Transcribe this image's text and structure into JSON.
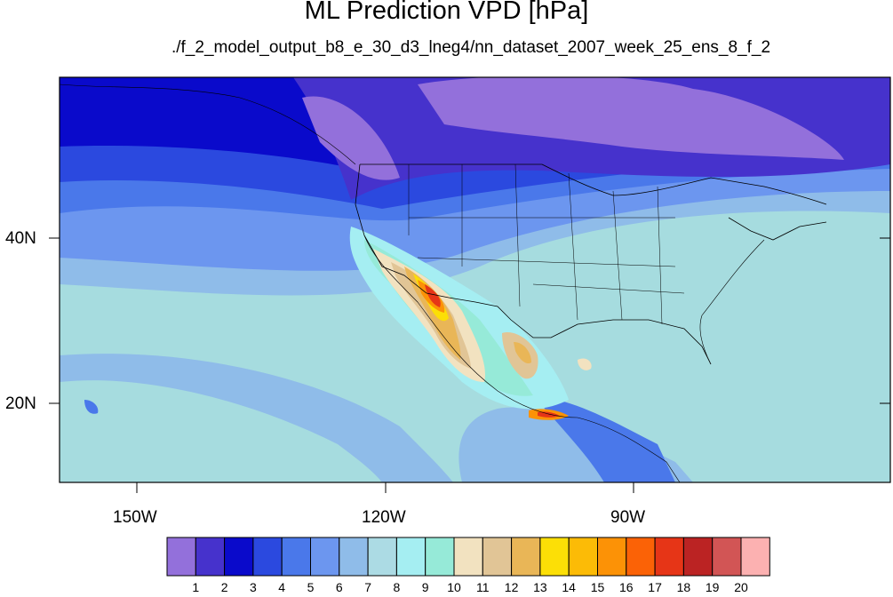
{
  "header": {
    "title": "ML Prediction VPD [hPa]",
    "subtitle": "./f_2_model_output_b8_e_30_d3_lneg4/nn_dataset_2007_week_25_ens_8_f_2"
  },
  "map": {
    "lat_labels": [
      "40N",
      "20N"
    ],
    "lon_labels": [
      "150W",
      "120W",
      "90W"
    ]
  },
  "colorbar": {
    "labels": [
      "1",
      "2",
      "3",
      "4",
      "5",
      "6",
      "7",
      "8",
      "9",
      "10",
      "11",
      "12",
      "13",
      "14",
      "15",
      "16",
      "17",
      "18",
      "19",
      "20"
    ],
    "colors": [
      "#9370db",
      "#4632cc",
      "#0a0acb",
      "#2b49df",
      "#4a78ea",
      "#6c96ef",
      "#8fbce9",
      "#acdbe4",
      "#a5eef2",
      "#96ead8",
      "#f2e2c0",
      "#e1c596",
      "#e9b657",
      "#fcdf06",
      "#fcbb06",
      "#fc9206",
      "#fb6206",
      "#e63517",
      "#bb2323",
      "#d25555",
      "#fcb1b1"
    ]
  },
  "colors": {
    "ocean_base": "#a6dcdf",
    "border": "#000000"
  }
}
